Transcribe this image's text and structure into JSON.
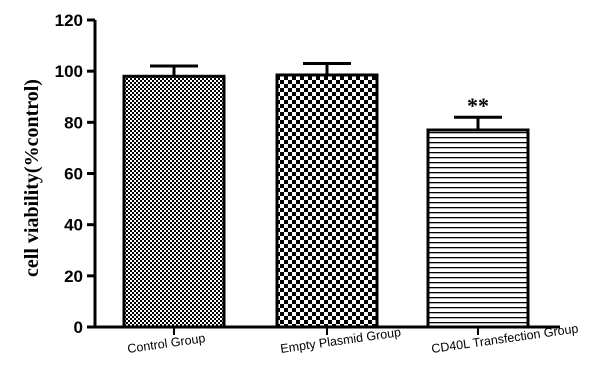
{
  "chart_data": {
    "type": "bar",
    "categories": [
      "Control Group",
      "Empty Plasmid Group",
      "CD40L Transfection Group"
    ],
    "values": [
      98,
      98.5,
      77
    ],
    "errors": [
      4,
      4.5,
      5
    ],
    "patterns": [
      "fine-check",
      "coarse-check",
      "horizontal-lines"
    ],
    "annotations": [
      "",
      "",
      "**"
    ],
    "title": "",
    "xlabel": "",
    "ylabel": "cell viability(%control)",
    "ylim": [
      0,
      120
    ],
    "yticks": [
      0,
      20,
      40,
      60,
      80,
      100,
      120
    ],
    "grid": false,
    "legend": "none"
  }
}
